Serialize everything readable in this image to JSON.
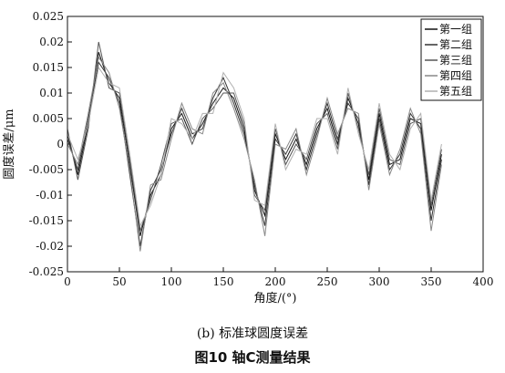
{
  "chart_data": {
    "type": "line",
    "xlabel": "角度/(°)",
    "ylabel": "圆度误差/μm",
    "xlim": [
      0,
      400
    ],
    "ylim": [
      -0.025,
      0.025
    ],
    "x_ticks": [
      "0",
      "50",
      "100",
      "150",
      "200",
      "250",
      "300",
      "350",
      "400"
    ],
    "y_ticks": [
      "-0.025",
      "-0.02",
      "-0.015",
      "-0.01",
      "-0.005",
      "0",
      "0.005",
      "0.01",
      "0.015",
      "0.02",
      "0.025"
    ],
    "grid": false,
    "legend_position": "top-right",
    "x": [
      0,
      10,
      20,
      30,
      40,
      50,
      60,
      70,
      80,
      90,
      100,
      110,
      120,
      130,
      140,
      150,
      160,
      170,
      180,
      190,
      200,
      210,
      220,
      230,
      240,
      250,
      260,
      270,
      280,
      290,
      300,
      310,
      320,
      330,
      340,
      350,
      360
    ],
    "series": [
      {
        "name": "第一组",
        "color": "#111111",
        "values": [
          0.002,
          -0.006,
          0.004,
          0.018,
          0.012,
          0.009,
          -0.004,
          -0.018,
          -0.01,
          -0.006,
          0.003,
          0.006,
          0.001,
          0.004,
          0.008,
          0.011,
          0.009,
          0.003,
          -0.009,
          -0.014,
          0.002,
          -0.003,
          0.001,
          -0.004,
          0.003,
          0.007,
          0.0,
          0.009,
          0.004,
          -0.007,
          0.006,
          -0.004,
          -0.003,
          0.005,
          0.004,
          -0.013,
          -0.002
        ]
      },
      {
        "name": "第二组",
        "color": "#333333",
        "values": [
          0.001,
          -0.005,
          0.005,
          0.016,
          0.013,
          0.008,
          -0.006,
          -0.02,
          -0.009,
          -0.005,
          0.002,
          0.007,
          0.002,
          0.003,
          0.009,
          0.013,
          0.008,
          0.002,
          -0.008,
          -0.016,
          0.001,
          -0.002,
          0.002,
          -0.005,
          0.002,
          0.008,
          0.001,
          0.008,
          0.005,
          -0.008,
          0.005,
          -0.005,
          -0.002,
          0.006,
          0.003,
          -0.015,
          -0.003
        ]
      },
      {
        "name": "第三组",
        "color": "#555555",
        "values": [
          0.003,
          -0.007,
          0.003,
          0.02,
          0.011,
          0.01,
          -0.003,
          -0.017,
          -0.011,
          -0.004,
          0.004,
          0.005,
          0.0,
          0.005,
          0.007,
          0.01,
          0.01,
          0.004,
          -0.01,
          -0.013,
          0.003,
          -0.004,
          0.0,
          -0.003,
          0.004,
          0.006,
          -0.001,
          0.01,
          0.003,
          -0.006,
          0.007,
          -0.003,
          -0.004,
          0.004,
          0.005,
          -0.012,
          -0.001
        ]
      },
      {
        "name": "第四组",
        "color": "#888888",
        "values": [
          0.0,
          -0.004,
          0.006,
          0.017,
          0.014,
          0.007,
          -0.005,
          -0.021,
          -0.008,
          -0.007,
          0.001,
          0.008,
          0.003,
          0.002,
          0.01,
          0.012,
          0.007,
          0.001,
          -0.007,
          -0.018,
          0.0,
          -0.001,
          0.003,
          -0.006,
          0.001,
          0.009,
          0.002,
          0.007,
          0.006,
          -0.009,
          0.004,
          -0.006,
          -0.001,
          0.007,
          0.002,
          -0.017,
          -0.004
        ]
      },
      {
        "name": "第五组",
        "color": "#b0b0b0",
        "values": [
          0.002,
          -0.003,
          0.004,
          0.015,
          0.012,
          0.011,
          -0.002,
          -0.016,
          -0.012,
          -0.006,
          0.005,
          0.004,
          0.001,
          0.006,
          0.006,
          0.014,
          0.011,
          0.005,
          -0.011,
          -0.012,
          0.004,
          -0.005,
          -0.001,
          -0.002,
          0.005,
          0.005,
          -0.002,
          0.011,
          0.002,
          -0.005,
          0.008,
          -0.002,
          -0.005,
          0.003,
          0.006,
          -0.011,
          0.0
        ]
      }
    ]
  },
  "subcaption": "(b) 标准球圆度误差",
  "figcaption": "图10  轴C测量结果"
}
